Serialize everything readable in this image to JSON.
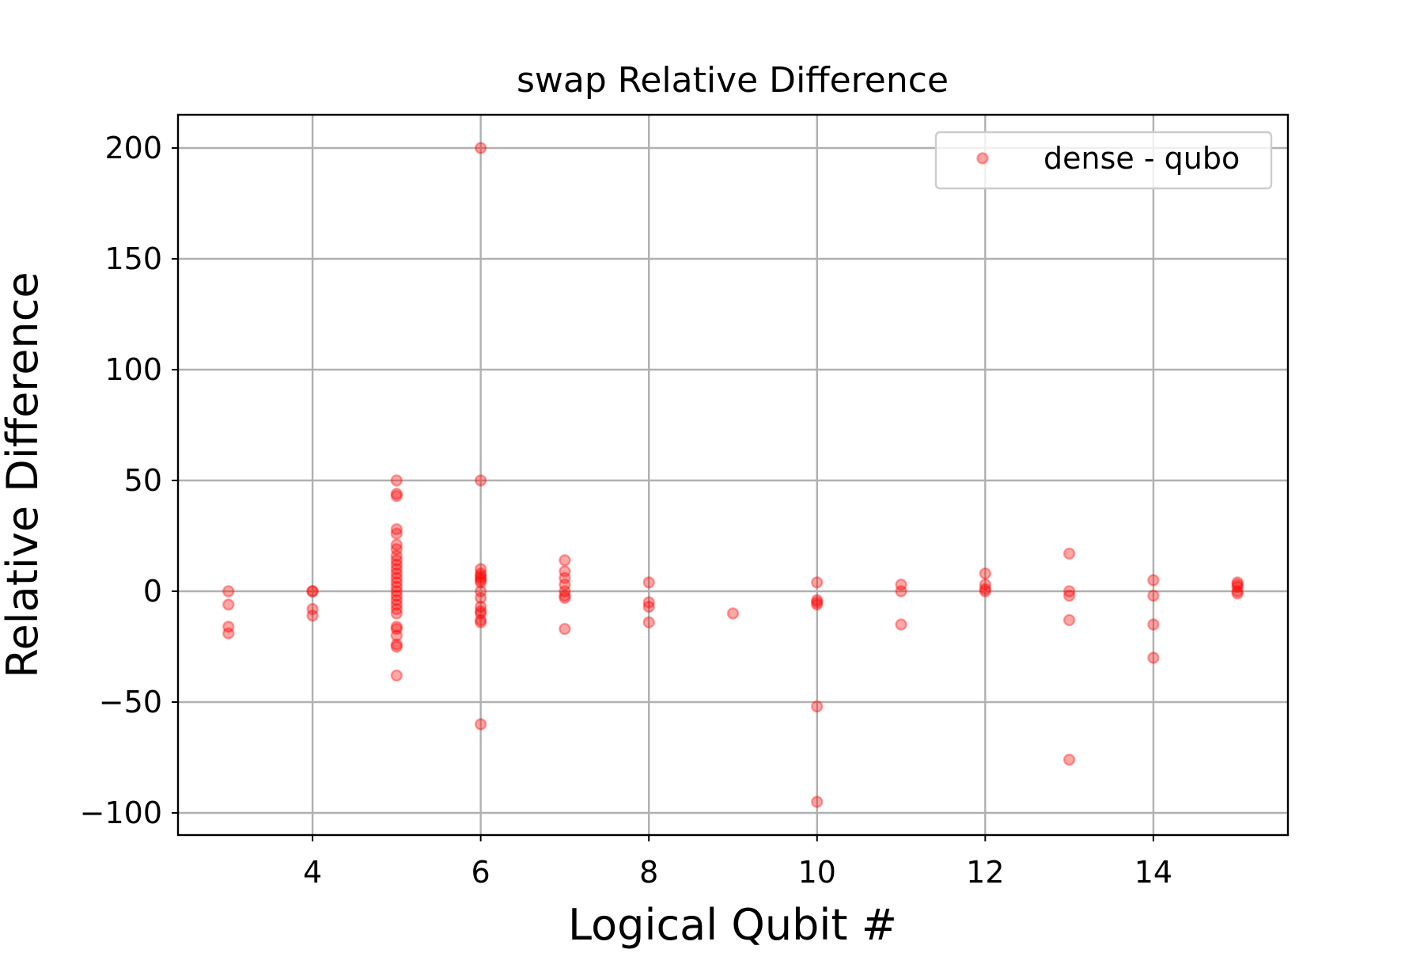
{
  "chart_data": {
    "type": "scatter",
    "title": "swap Relative Difference",
    "xlabel": "Logical Qubit #",
    "ylabel": "Relative Difference",
    "xlim": [
      2.4,
      15.6
    ],
    "ylim": [
      -110,
      215
    ],
    "xticks": [
      4,
      6,
      8,
      10,
      12,
      14
    ],
    "yticks": [
      -100,
      -50,
      0,
      50,
      100,
      150,
      200
    ],
    "xtick_labels": [
      "4",
      "6",
      "8",
      "10",
      "12",
      "14"
    ],
    "ytick_labels": [
      "−100",
      "−50",
      "0",
      "50",
      "100",
      "150",
      "200"
    ],
    "grid": true,
    "legend_position": "top-right",
    "series": [
      {
        "name": "dense - qubo",
        "color": "#ff0000",
        "marker": "circle",
        "points": [
          {
            "x": 3,
            "y": 0
          },
          {
            "x": 3,
            "y": -6
          },
          {
            "x": 3,
            "y": -16
          },
          {
            "x": 3,
            "y": -19
          },
          {
            "x": 4,
            "y": 0
          },
          {
            "x": 4,
            "y": 0
          },
          {
            "x": 4,
            "y": -8
          },
          {
            "x": 4,
            "y": -11
          },
          {
            "x": 5,
            "y": 50
          },
          {
            "x": 5,
            "y": 44
          },
          {
            "x": 5,
            "y": 43
          },
          {
            "x": 5,
            "y": 28
          },
          {
            "x": 5,
            "y": 26
          },
          {
            "x": 5,
            "y": 21
          },
          {
            "x": 5,
            "y": 19
          },
          {
            "x": 5,
            "y": 16
          },
          {
            "x": 5,
            "y": 14
          },
          {
            "x": 5,
            "y": 12
          },
          {
            "x": 5,
            "y": 10
          },
          {
            "x": 5,
            "y": 8
          },
          {
            "x": 5,
            "y": 6
          },
          {
            "x": 5,
            "y": 4
          },
          {
            "x": 5,
            "y": 2
          },
          {
            "x": 5,
            "y": 0
          },
          {
            "x": 5,
            "y": -2
          },
          {
            "x": 5,
            "y": -4
          },
          {
            "x": 5,
            "y": -6
          },
          {
            "x": 5,
            "y": -8
          },
          {
            "x": 5,
            "y": -10
          },
          {
            "x": 5,
            "y": -16
          },
          {
            "x": 5,
            "y": -17
          },
          {
            "x": 5,
            "y": -20
          },
          {
            "x": 5,
            "y": -24
          },
          {
            "x": 5,
            "y": -25
          },
          {
            "x": 5,
            "y": -38
          },
          {
            "x": 6,
            "y": 200
          },
          {
            "x": 6,
            "y": 50
          },
          {
            "x": 6,
            "y": 10
          },
          {
            "x": 6,
            "y": 8
          },
          {
            "x": 6,
            "y": 7
          },
          {
            "x": 6,
            "y": 6
          },
          {
            "x": 6,
            "y": 5
          },
          {
            "x": 6,
            "y": 4
          },
          {
            "x": 6,
            "y": 0
          },
          {
            "x": 6,
            "y": -3
          },
          {
            "x": 6,
            "y": -7
          },
          {
            "x": 6,
            "y": -9
          },
          {
            "x": 6,
            "y": -10
          },
          {
            "x": 6,
            "y": -13
          },
          {
            "x": 6,
            "y": -14
          },
          {
            "x": 6,
            "y": -60
          },
          {
            "x": 7,
            "y": 14
          },
          {
            "x": 7,
            "y": 9
          },
          {
            "x": 7,
            "y": 6
          },
          {
            "x": 7,
            "y": 3
          },
          {
            "x": 7,
            "y": 0
          },
          {
            "x": 7,
            "y": -2
          },
          {
            "x": 7,
            "y": -3
          },
          {
            "x": 7,
            "y": -17
          },
          {
            "x": 8,
            "y": 4
          },
          {
            "x": 8,
            "y": -5
          },
          {
            "x": 8,
            "y": -7
          },
          {
            "x": 8,
            "y": -14
          },
          {
            "x": 9,
            "y": -10
          },
          {
            "x": 10,
            "y": 4
          },
          {
            "x": 10,
            "y": -4
          },
          {
            "x": 10,
            "y": -5
          },
          {
            "x": 10,
            "y": -6
          },
          {
            "x": 10,
            "y": -52
          },
          {
            "x": 10,
            "y": -95
          },
          {
            "x": 11,
            "y": 3
          },
          {
            "x": 11,
            "y": 0
          },
          {
            "x": 11,
            "y": -15
          },
          {
            "x": 12,
            "y": 8
          },
          {
            "x": 12,
            "y": 3
          },
          {
            "x": 12,
            "y": 1
          },
          {
            "x": 12,
            "y": 0
          },
          {
            "x": 13,
            "y": 17
          },
          {
            "x": 13,
            "y": 0
          },
          {
            "x": 13,
            "y": -2
          },
          {
            "x": 13,
            "y": -13
          },
          {
            "x": 13,
            "y": -76
          },
          {
            "x": 14,
            "y": 5
          },
          {
            "x": 14,
            "y": -2
          },
          {
            "x": 14,
            "y": -15
          },
          {
            "x": 14,
            "y": -30
          },
          {
            "x": 15,
            "y": 4
          },
          {
            "x": 15,
            "y": 3
          },
          {
            "x": 15,
            "y": 2
          },
          {
            "x": 15,
            "y": 0
          },
          {
            "x": 15,
            "y": -1
          }
        ]
      }
    ]
  }
}
